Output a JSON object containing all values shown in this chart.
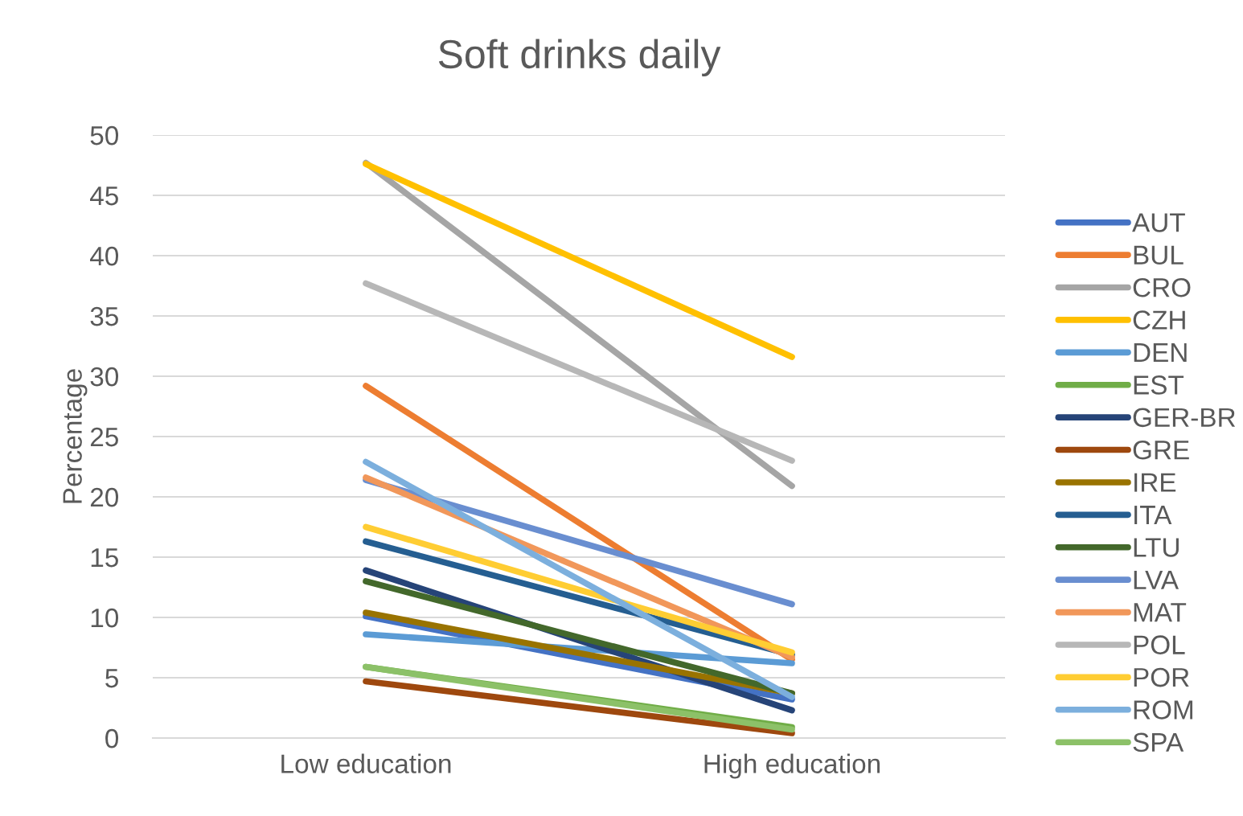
{
  "chart_data": {
    "type": "line",
    "title": "Soft drinks daily",
    "ylabel": "Percentage",
    "categories": [
      "Low education",
      "High education"
    ],
    "ylim": [
      0,
      50
    ],
    "yticks": [
      0,
      5,
      10,
      15,
      20,
      25,
      30,
      35,
      40,
      45,
      50
    ],
    "grid": "y",
    "legend": "right",
    "marker": "none",
    "line_style": "solid",
    "series": [
      {
        "name": "AUT",
        "color": "#4472c4",
        "values": [
          10.1,
          3.2
        ]
      },
      {
        "name": "BUL",
        "color": "#ed7d31",
        "values": [
          29.2,
          6.5
        ]
      },
      {
        "name": "CRO",
        "color": "#a5a5a5",
        "values": [
          47.7,
          20.9
        ]
      },
      {
        "name": "CZH",
        "color": "#ffc000",
        "values": [
          47.6,
          31.6
        ]
      },
      {
        "name": "DEN",
        "color": "#5b9bd5",
        "values": [
          8.6,
          6.2
        ]
      },
      {
        "name": "EST",
        "color": "#70ad47",
        "values": [
          5.9,
          0.9
        ]
      },
      {
        "name": "GER-BR",
        "color": "#264478",
        "values": [
          13.9,
          2.3
        ]
      },
      {
        "name": "GRE",
        "color": "#9e480e",
        "values": [
          4.7,
          0.4
        ]
      },
      {
        "name": "IRE",
        "color": "#997300",
        "values": [
          10.4,
          3.7
        ]
      },
      {
        "name": "ITA",
        "color": "#255e91",
        "values": [
          16.3,
          6.9
        ]
      },
      {
        "name": "LTU",
        "color": "#43682b",
        "values": [
          13.0,
          3.7
        ]
      },
      {
        "name": "LVA",
        "color": "#698ed0",
        "values": [
          21.4,
          11.1
        ]
      },
      {
        "name": "MAT",
        "color": "#f1975a",
        "values": [
          21.6,
          6.7
        ]
      },
      {
        "name": "POL",
        "color": "#b7b7b7",
        "values": [
          37.7,
          23.0
        ]
      },
      {
        "name": "POR",
        "color": "#ffcd33",
        "values": [
          17.5,
          7.1
        ]
      },
      {
        "name": "ROM",
        "color": "#7cafdd",
        "values": [
          22.9,
          3.4
        ]
      },
      {
        "name": "SPA",
        "color": "#8cc168",
        "values": [
          5.9,
          0.7
        ]
      }
    ]
  }
}
